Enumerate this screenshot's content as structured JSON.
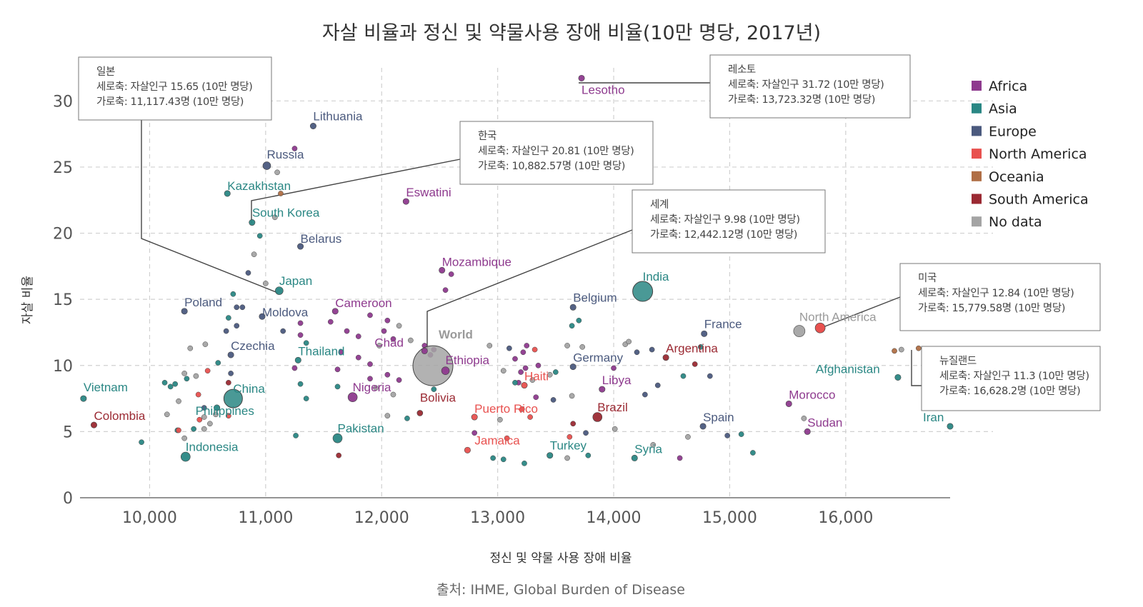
{
  "chart_data": {
    "type": "scatter",
    "title": "자살 비율과 정신 및 약물사용 장애 비율(10만 명당, 2017년)",
    "xlabel": "정신 및 약물 사용 장애 비율",
    "ylabel": "자살 비율",
    "source": "출처: IHME, Global Burden of Disease",
    "xlim": [
      9400,
      16900
    ],
    "ylim": [
      0,
      32.5
    ],
    "x_ticks": [
      10000,
      11000,
      12000,
      13000,
      14000,
      15000,
      16000
    ],
    "x_tick_labels": [
      "10,000",
      "11,000",
      "12,000",
      "13,000",
      "14,000",
      "15,000",
      "16,000"
    ],
    "y_ticks": [
      0,
      5,
      10,
      15,
      20,
      25,
      30
    ],
    "y_tick_labels": [
      "0",
      "5",
      "10",
      "15",
      "20",
      "25",
      "30"
    ],
    "grid": true,
    "legend_position": "right",
    "legend": [
      {
        "name": "Africa",
        "color": "#8e3a8e"
      },
      {
        "name": "Asia",
        "color": "#2a8784"
      },
      {
        "name": "Europe",
        "color": "#4b5a7e"
      },
      {
        "name": "North America",
        "color": "#e8514f"
      },
      {
        "name": "Oceania",
        "color": "#b06f46"
      },
      {
        "name": "South America",
        "color": "#9b2a33"
      },
      {
        "name": "No data",
        "color": "#a4a4a4"
      }
    ],
    "labeled_points": [
      {
        "label": "Lesotho",
        "x": 13723,
        "y": 31.72,
        "group": "Africa"
      },
      {
        "label": "Lithuania",
        "x": 11410,
        "y": 28.1,
        "group": "Europe"
      },
      {
        "label": "Russia",
        "x": 11010,
        "y": 25.1,
        "group": "Europe"
      },
      {
        "label": "Kazakhstan",
        "x": 10670,
        "y": 23.0,
        "group": "Asia"
      },
      {
        "label": "South Korea",
        "x": 10883,
        "y": 20.81,
        "group": "Asia"
      },
      {
        "label": "Eswatini",
        "x": 12210,
        "y": 22.4,
        "group": "Africa"
      },
      {
        "label": "Belarus",
        "x": 11300,
        "y": 19.0,
        "group": "Europe"
      },
      {
        "label": "Mozambique",
        "x": 12520,
        "y": 17.2,
        "group": "Africa"
      },
      {
        "label": "Japan",
        "x": 11117,
        "y": 15.65,
        "group": "Asia"
      },
      {
        "label": "India",
        "x": 14250,
        "y": 15.6,
        "group": "Asia"
      },
      {
        "label": "Belgium",
        "x": 13650,
        "y": 14.4,
        "group": "Europe"
      },
      {
        "label": "Poland",
        "x": 10300,
        "y": 14.1,
        "group": "Europe"
      },
      {
        "label": "Moldova",
        "x": 10970,
        "y": 13.7,
        "group": "Europe"
      },
      {
        "label": "Cameroon",
        "x": 11600,
        "y": 14.1,
        "group": "Africa"
      },
      {
        "label": "World",
        "x": 12442,
        "y": 9.98,
        "group": "No data"
      },
      {
        "label": "North America",
        "x": 15600,
        "y": 12.6,
        "group": "No data"
      },
      {
        "label": "France",
        "x": 14780,
        "y": 12.4,
        "group": "Europe"
      },
      {
        "label": "Czechia",
        "x": 10700,
        "y": 10.8,
        "group": "Europe"
      },
      {
        "label": "Thailand",
        "x": 11280,
        "y": 10.4,
        "group": "Asia"
      },
      {
        "label": "Chad",
        "x": 12370,
        "y": 11.1,
        "group": "Africa"
      },
      {
        "label": "Ethiopia",
        "x": 12550,
        "y": 9.6,
        "group": "Africa"
      },
      {
        "label": "Germany",
        "x": 13650,
        "y": 9.9,
        "group": "Europe"
      },
      {
        "label": "Argentina",
        "x": 14450,
        "y": 10.6,
        "group": "South America"
      },
      {
        "label": "Haiti",
        "x": 13230,
        "y": 8.5,
        "group": "North America"
      },
      {
        "label": "Afghanistan",
        "x": 16450,
        "y": 9.1,
        "group": "Asia"
      },
      {
        "label": "Vietnam",
        "x": 9430,
        "y": 7.5,
        "group": "Asia"
      },
      {
        "label": "China",
        "x": 10720,
        "y": 7.5,
        "group": "Asia"
      },
      {
        "label": "Nigeria",
        "x": 11750,
        "y": 7.6,
        "group": "Africa"
      },
      {
        "label": "Libya",
        "x": 13900,
        "y": 8.2,
        "group": "Africa"
      },
      {
        "label": "Philippines",
        "x": 10580,
        "y": 6.8,
        "group": "Asia"
      },
      {
        "label": "Morocco",
        "x": 15510,
        "y": 7.1,
        "group": "Africa"
      },
      {
        "label": "Bolivia",
        "x": 12330,
        "y": 6.4,
        "group": "South America"
      },
      {
        "label": "Puerto Rico",
        "x": 12800,
        "y": 6.1,
        "group": "North America"
      },
      {
        "label": "Brazil",
        "x": 13860,
        "y": 6.1,
        "group": "South America"
      },
      {
        "label": "Colombia",
        "x": 9520,
        "y": 5.5,
        "group": "South America"
      },
      {
        "label": "Spain",
        "x": 14770,
        "y": 5.4,
        "group": "Europe"
      },
      {
        "label": "Iran",
        "x": 16900,
        "y": 5.4,
        "group": "Asia"
      },
      {
        "label": "Sudan",
        "x": 15670,
        "y": 5.0,
        "group": "Africa"
      },
      {
        "label": "Pakistan",
        "x": 11620,
        "y": 4.5,
        "group": "Asia"
      },
      {
        "label": "Jamaica",
        "x": 12740,
        "y": 3.6,
        "group": "North America"
      },
      {
        "label": "Indonesia",
        "x": 10310,
        "y": 3.1,
        "group": "Asia"
      },
      {
        "label": "Turkey",
        "x": 13450,
        "y": 3.2,
        "group": "Asia"
      },
      {
        "label": "Syria",
        "x": 14180,
        "y": 3.0,
        "group": "Asia"
      }
    ],
    "unlabeled_points": [
      [
        11250,
        26.4,
        "Africa"
      ],
      [
        11100,
        24.6,
        "No data"
      ],
      [
        11130,
        23.0,
        "Oceania"
      ],
      [
        11080,
        21.2,
        "No data"
      ],
      [
        10950,
        19.8,
        "Asia"
      ],
      [
        10900,
        18.4,
        "No data"
      ],
      [
        10850,
        17.0,
        "Europe"
      ],
      [
        11000,
        16.2,
        "No data"
      ],
      [
        12600,
        16.9,
        "Africa"
      ],
      [
        12550,
        15.7,
        "Africa"
      ],
      [
        10720,
        15.4,
        "Asia"
      ],
      [
        10750,
        14.4,
        "Europe"
      ],
      [
        10800,
        14.4,
        "Europe"
      ],
      [
        10680,
        13.6,
        "Asia"
      ],
      [
        10750,
        13.0,
        "Europe"
      ],
      [
        10660,
        12.6,
        "Europe"
      ],
      [
        11150,
        12.6,
        "Europe"
      ],
      [
        11300,
        13.2,
        "Africa"
      ],
      [
        11300,
        12.3,
        "Africa"
      ],
      [
        11350,
        11.7,
        "Asia"
      ],
      [
        10480,
        11.6,
        "No data"
      ],
      [
        10350,
        11.3,
        "No data"
      ],
      [
        11560,
        13.3,
        "Africa"
      ],
      [
        11700,
        12.6,
        "Africa"
      ],
      [
        11800,
        12.2,
        "Africa"
      ],
      [
        11900,
        13.8,
        "Africa"
      ],
      [
        12050,
        13.4,
        "Africa"
      ],
      [
        12150,
        13.0,
        "No data"
      ],
      [
        12020,
        12.6,
        "Africa"
      ],
      [
        12100,
        12.0,
        "Africa"
      ],
      [
        11980,
        11.5,
        "No data"
      ],
      [
        12250,
        11.9,
        "No data"
      ],
      [
        11650,
        11.0,
        "Africa"
      ],
      [
        11800,
        10.6,
        "Africa"
      ],
      [
        11900,
        10.1,
        "Africa"
      ],
      [
        11250,
        9.8,
        "Africa"
      ],
      [
        11620,
        9.7,
        "Africa"
      ],
      [
        11900,
        9.0,
        "Africa"
      ],
      [
        12050,
        9.3,
        "Africa"
      ],
      [
        12150,
        8.9,
        "Africa"
      ],
      [
        12370,
        11.5,
        "Africa"
      ],
      [
        12450,
        11.2,
        "Africa"
      ],
      [
        12420,
        10.8,
        "Africa"
      ],
      [
        11300,
        8.6,
        "Asia"
      ],
      [
        11350,
        7.5,
        "Asia"
      ],
      [
        11620,
        8.4,
        "Asia"
      ],
      [
        11950,
        8.3,
        "No data"
      ],
      [
        12100,
        7.8,
        "No data"
      ],
      [
        12050,
        6.2,
        "No data"
      ],
      [
        12220,
        6.0,
        "Asia"
      ],
      [
        12450,
        8.2,
        "Asia"
      ],
      [
        10500,
        9.6,
        "North America"
      ],
      [
        10590,
        10.2,
        "Asia"
      ],
      [
        10700,
        9.4,
        "Europe"
      ],
      [
        10400,
        9.2,
        "No data"
      ],
      [
        10300,
        9.4,
        "No data"
      ],
      [
        10320,
        9.0,
        "Asia"
      ],
      [
        10420,
        7.8,
        "North America"
      ],
      [
        10470,
        6.8,
        "Europe"
      ],
      [
        10250,
        7.3,
        "No data"
      ],
      [
        10220,
        8.6,
        "Asia"
      ],
      [
        10130,
        8.7,
        "Asia"
      ],
      [
        10180,
        8.4,
        "Asia"
      ],
      [
        10150,
        6.3,
        "No data"
      ],
      [
        10430,
        5.9,
        "North America"
      ],
      [
        10470,
        6.1,
        "No data"
      ],
      [
        10240,
        5.1,
        "Asia"
      ],
      [
        10250,
        5.1,
        "North America"
      ],
      [
        10380,
        5.2,
        "Asia"
      ],
      [
        10470,
        5.2,
        "No data"
      ],
      [
        10520,
        5.6,
        "No data"
      ],
      [
        10680,
        8.7,
        "South America"
      ],
      [
        10680,
        6.2,
        "North America"
      ],
      [
        10570,
        6.3,
        "No data"
      ],
      [
        9930,
        4.2,
        "Asia"
      ],
      [
        10300,
        4.5,
        "No data"
      ],
      [
        11260,
        4.7,
        "Asia"
      ],
      [
        11630,
        3.2,
        "South America"
      ],
      [
        12930,
        11.5,
        "No data"
      ],
      [
        13100,
        11.3,
        "Europe"
      ],
      [
        13250,
        11.5,
        "Africa"
      ],
      [
        13220,
        11.0,
        "Africa"
      ],
      [
        13320,
        11.2,
        "North America"
      ],
      [
        13150,
        10.5,
        "Africa"
      ],
      [
        13350,
        10.0,
        "Africa"
      ],
      [
        13050,
        9.6,
        "No data"
      ],
      [
        13200,
        9.5,
        "Africa"
      ],
      [
        13180,
        8.7,
        "Africa"
      ],
      [
        13150,
        8.7,
        "Asia"
      ],
      [
        13240,
        9.8,
        "Africa"
      ],
      [
        13300,
        8.9,
        "No data"
      ],
      [
        13450,
        9.3,
        "No data"
      ],
      [
        13500,
        9.5,
        "Asia"
      ],
      [
        13600,
        11.5,
        "No data"
      ],
      [
        13640,
        13.0,
        "Asia"
      ],
      [
        13700,
        13.4,
        "Asia"
      ],
      [
        13730,
        11.4,
        "No data"
      ],
      [
        14100,
        11.6,
        "No data"
      ],
      [
        14130,
        11.8,
        "No data"
      ],
      [
        14200,
        11.0,
        "Europe"
      ],
      [
        14330,
        11.2,
        "Europe"
      ],
      [
        14380,
        8.5,
        "Europe"
      ],
      [
        14270,
        7.8,
        "Europe"
      ],
      [
        14000,
        9.8,
        "Africa"
      ],
      [
        14750,
        11.4,
        "Asia"
      ],
      [
        14700,
        10.1,
        "South America"
      ],
      [
        14600,
        9.2,
        "Asia"
      ],
      [
        14830,
        9.2,
        "Europe"
      ],
      [
        13330,
        7.6,
        "Africa"
      ],
      [
        13480,
        7.4,
        "Europe"
      ],
      [
        13650,
        5.6,
        "South America"
      ],
      [
        13640,
        7.7,
        "No data"
      ],
      [
        14010,
        5.2,
        "No data"
      ],
      [
        13210,
        6.7,
        "North America"
      ],
      [
        13280,
        6.1,
        "North America"
      ],
      [
        13020,
        5.9,
        "No data"
      ],
      [
        12800,
        4.9,
        "Africa"
      ],
      [
        13080,
        4.5,
        "North America"
      ],
      [
        12960,
        3.0,
        "Asia"
      ],
      [
        13050,
        2.9,
        "Asia"
      ],
      [
        13230,
        2.6,
        "Asia"
      ],
      [
        13620,
        4.6,
        "North America"
      ],
      [
        13600,
        3.0,
        "No data"
      ],
      [
        13760,
        4.9,
        "Europe"
      ],
      [
        13780,
        3.2,
        "Asia"
      ],
      [
        14570,
        3.0,
        "Africa"
      ],
      [
        14340,
        4.0,
        "No data"
      ],
      [
        14640,
        4.6,
        "No data"
      ],
      [
        14980,
        4.7,
        "Europe"
      ],
      [
        15200,
        3.4,
        "Asia"
      ],
      [
        15100,
        4.8,
        "Asia"
      ],
      [
        15640,
        6.0,
        "No data"
      ],
      [
        16420,
        11.1,
        "Oceania"
      ],
      [
        16480,
        11.2,
        "No data"
      ],
      [
        16628,
        11.3,
        "Oceania"
      ]
    ],
    "callouts": [
      {
        "name": "일본",
        "line1": "일본",
        "line2": "세로축: 자살인구 15.65 (10만 명당)",
        "line3": "가로축: 11,117.43명 (10만 명당)"
      },
      {
        "name": "레소토",
        "line1": "레소토",
        "line2": "세로축: 자살인구 31.72 (10만 명당)",
        "line3": "가로축: 13,723.32명 (10만 명당)"
      },
      {
        "name": "한국",
        "line1": "한국",
        "line2": "세로축: 자살인구 20.81 (10만 명당)",
        "line3": "가로축: 10,882.57명 (10만 명당)"
      },
      {
        "name": "세계",
        "line1": "세계",
        "line2": "세로축: 자살인구 9.98 (10만 명당)",
        "line3": "가로축: 12,442.12명 (10만 명당)"
      },
      {
        "name": "미국",
        "line1": "미국",
        "line2": "세로축: 자살인구 12.84 (10만 명당)",
        "line3": "가로축: 15,779.58명 (10만 명당)"
      },
      {
        "name": "뉴질랜드",
        "line1": "뉴질랜드",
        "line2": "세로축: 자살인구 11.3 (10만 명당)",
        "line3": "가로축: 16,628.2명 (10만 명당)"
      }
    ]
  }
}
